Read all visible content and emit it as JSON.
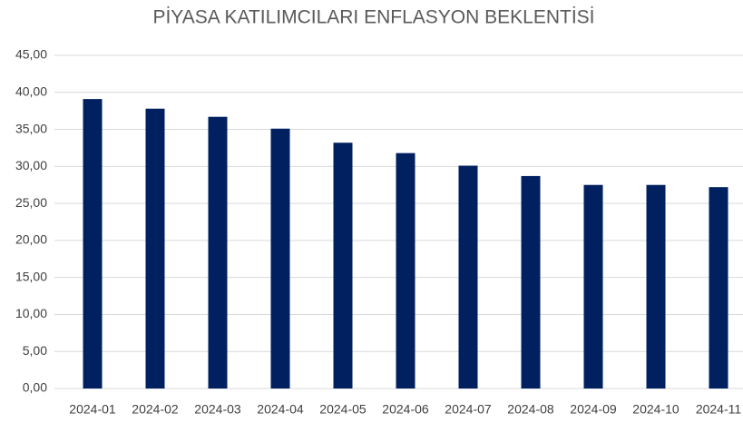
{
  "chart_data": {
    "type": "bar",
    "title": "PİYASA KATILIMCILARI ENFLASYON BEKLENTİSİ",
    "categories": [
      "2024-01",
      "2024-02",
      "2024-03",
      "2024-04",
      "2024-05",
      "2024-06",
      "2024-07",
      "2024-08",
      "2024-09",
      "2024-10",
      "2024-11"
    ],
    "values": [
      39.1,
      37.8,
      36.7,
      35.1,
      33.2,
      31.8,
      30.1,
      28.7,
      27.5,
      27.5,
      27.2
    ],
    "color": "#002060",
    "ylim": [
      0,
      45
    ],
    "yticks": [
      {
        "value": 0,
        "label": "0,00"
      },
      {
        "value": 5,
        "label": "5,00"
      },
      {
        "value": 10,
        "label": "10,00"
      },
      {
        "value": 15,
        "label": "15,00"
      },
      {
        "value": 20,
        "label": "20,00"
      },
      {
        "value": 25,
        "label": "25,00"
      },
      {
        "value": 30,
        "label": "30,00"
      },
      {
        "value": 35,
        "label": "35,00"
      },
      {
        "value": 40,
        "label": "40,00"
      },
      {
        "value": 45,
        "label": "45,00"
      }
    ],
    "grid": true
  }
}
